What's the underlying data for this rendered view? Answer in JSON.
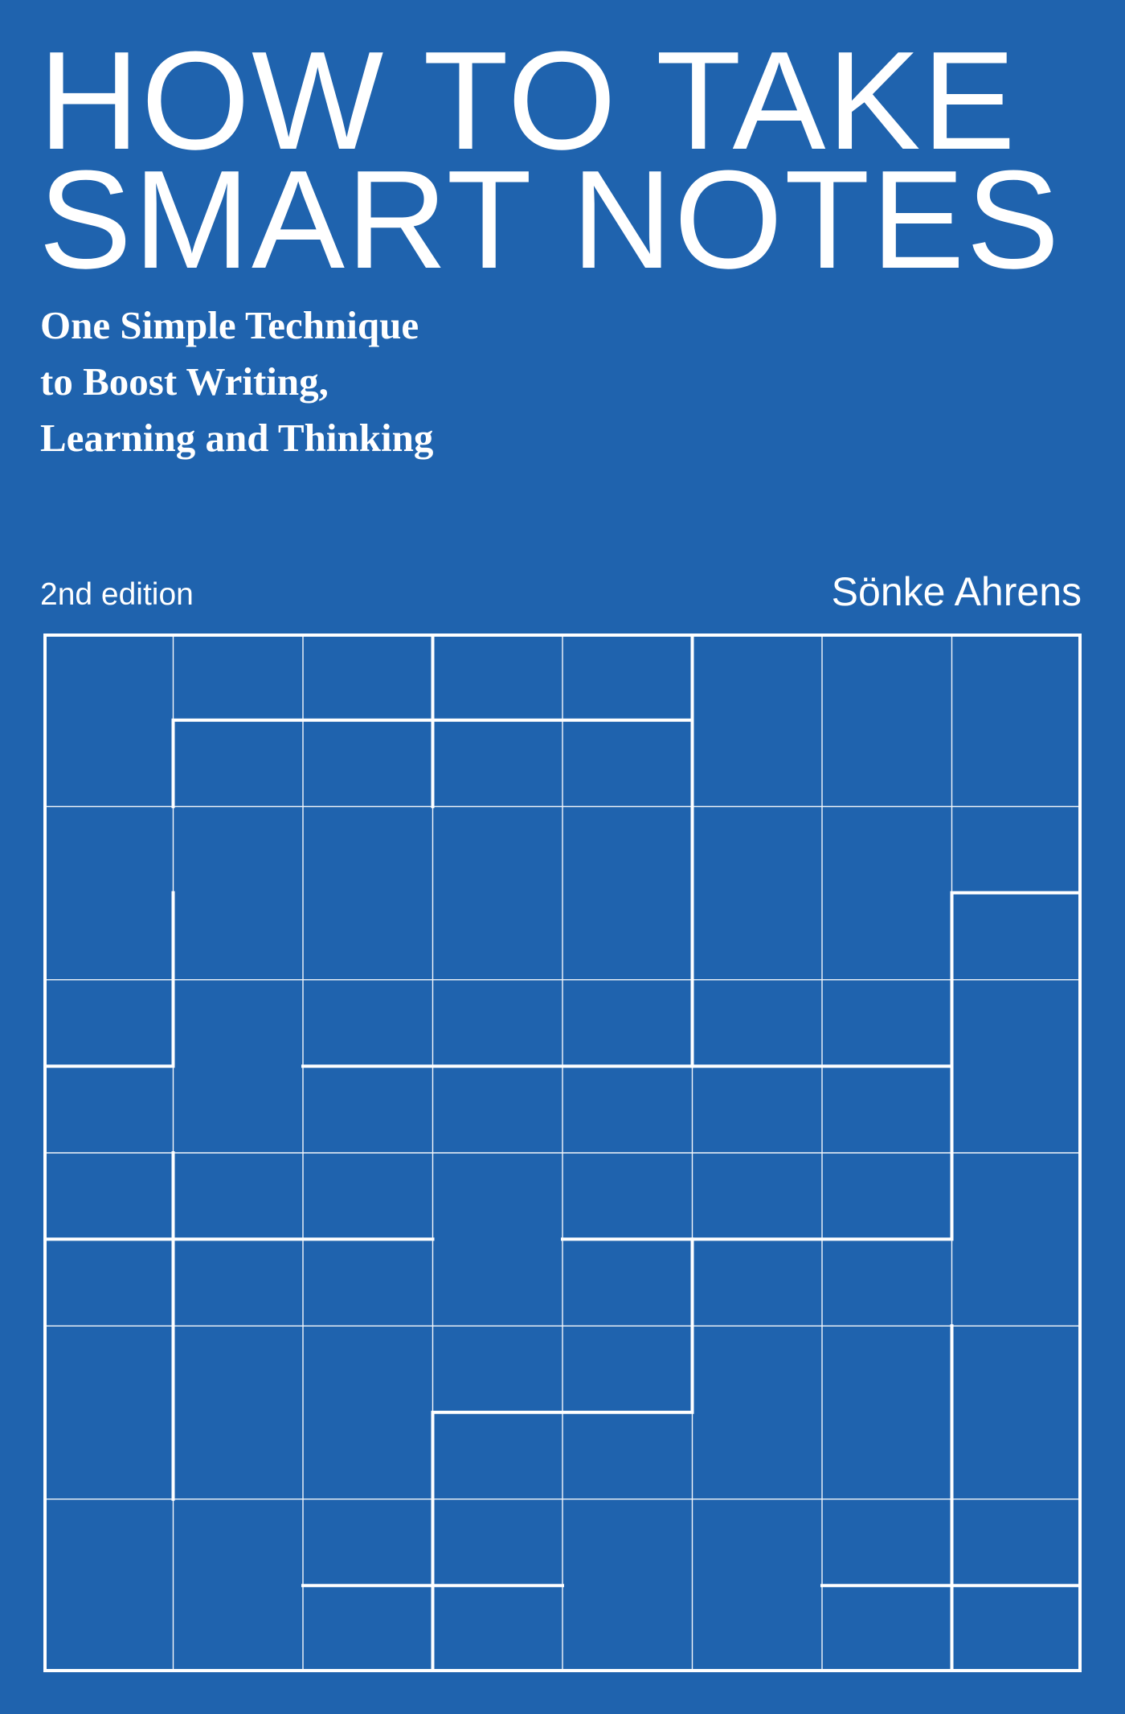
{
  "cover": {
    "title_lines": [
      "HOW TO TAKE",
      "SMART NOTES"
    ],
    "subtitle_lines": [
      "One Simple Technique",
      "to Boost Writing,",
      "Learning and Thinking"
    ],
    "edition": "2nd edition",
    "author": "Sönke Ahrens"
  },
  "colors": {
    "background": "#1f63ae",
    "foreground": "#ffffff"
  }
}
